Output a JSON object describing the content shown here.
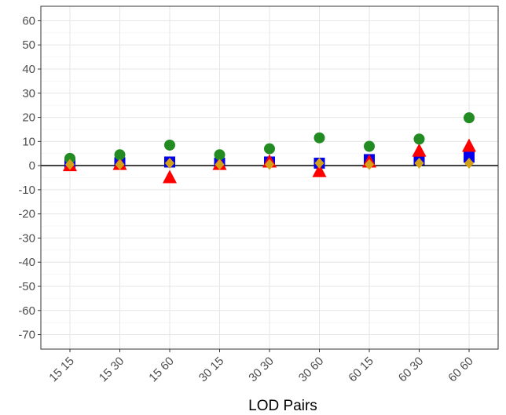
{
  "chart_data": {
    "type": "scatter",
    "title": "",
    "xlabel": "LOD Pairs",
    "ylabel": "",
    "categories": [
      "15 15",
      "15 30",
      "15 60",
      "30 15",
      "30 30",
      "30 60",
      "60 15",
      "60 30",
      "60 60"
    ],
    "ylim": [
      -76,
      66
    ],
    "yticks": [
      60,
      50,
      40,
      30,
      20,
      10,
      0,
      -10,
      -20,
      -30,
      -40,
      -50,
      -60,
      -70
    ],
    "grid": true,
    "reference_line_y": 0,
    "legend": "none",
    "series": [
      {
        "marker": "square",
        "color": "#0000ee",
        "values": [
          1.0,
          1.2,
          1.5,
          1.0,
          1.5,
          1.0,
          2.5,
          2.5,
          3.5
        ]
      },
      {
        "marker": "triangle",
        "color": "#ff0000",
        "values": [
          0.0,
          0.5,
          -5.0,
          0.5,
          1.5,
          -2.5,
          1.5,
          6.0,
          8.0
        ]
      },
      {
        "marker": "circle",
        "color": "#228b22",
        "values": [
          3.0,
          4.5,
          8.5,
          4.5,
          7.0,
          11.5,
          8.0,
          11.0,
          19.8
        ]
      },
      {
        "marker": "diamond",
        "color": "#d4a017",
        "values": [
          0.5,
          0.5,
          1.0,
          0.5,
          0.5,
          1.0,
          0.5,
          1.0,
          1.0
        ]
      }
    ]
  }
}
